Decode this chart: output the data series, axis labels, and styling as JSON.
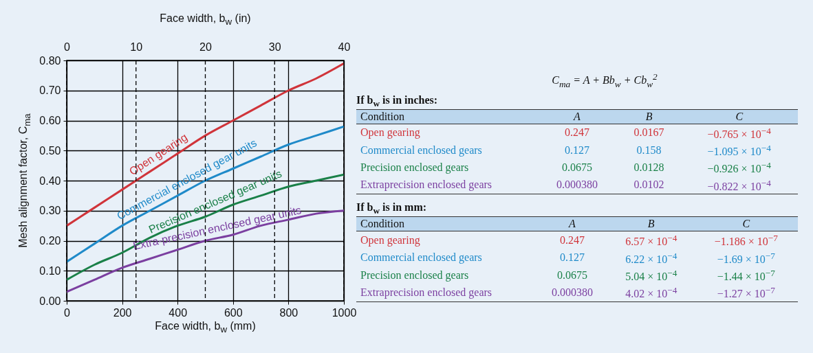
{
  "chart_data": [
    {
      "type": "line",
      "xlabel": "Face width, b$_{w}$ (mm)",
      "x2label": "Face width, b$_{w}$ (in)",
      "ylabel": "Mesh alignment factor, C$_{ma}$",
      "x": [
        0,
        100,
        200,
        300,
        400,
        500,
        600,
        700,
        800,
        900,
        1000
      ],
      "series": [
        {
          "name": "Open gearing",
          "color": "#d0343a",
          "values": [
            0.25,
            0.31,
            0.37,
            0.43,
            0.49,
            0.55,
            0.6,
            0.65,
            0.7,
            0.74,
            0.79
          ]
        },
        {
          "name": "Commercial enclosed gear units",
          "color": "#1f8ac9",
          "values": [
            0.13,
            0.19,
            0.25,
            0.3,
            0.35,
            0.4,
            0.44,
            0.48,
            0.52,
            0.55,
            0.58
          ]
        },
        {
          "name": "Precision enclosed gear units",
          "color": "#1a8048",
          "values": [
            0.07,
            0.12,
            0.16,
            0.21,
            0.25,
            0.28,
            0.32,
            0.35,
            0.38,
            0.4,
            0.42
          ]
        },
        {
          "name": "Extra-precision enclosed gear units",
          "color": "#7b3fa0",
          "values": [
            0.03,
            0.07,
            0.11,
            0.14,
            0.17,
            0.2,
            0.22,
            0.25,
            0.27,
            0.29,
            0.3
          ]
        }
      ],
      "xlim": [
        0,
        1000
      ],
      "xticks": [
        0,
        200,
        400,
        600,
        800,
        1000
      ],
      "x2lim": [
        0,
        40
      ],
      "x2ticks": [
        0,
        10,
        20,
        30,
        40
      ],
      "ylim": [
        0,
        0.8
      ],
      "yticks": [
        {
          "value": 0,
          "label": "0.00"
        },
        {
          "value": 0.1,
          "label": "0.10"
        },
        {
          "value": 0.2,
          "label": "0.20"
        },
        {
          "value": 0.3,
          "label": "0.30"
        },
        {
          "value": 0.4,
          "label": "0.40"
        },
        {
          "value": 0.5,
          "label": "0.50"
        },
        {
          "value": 0.6,
          "label": "0.60"
        },
        {
          "value": 0.7,
          "label": "0.70"
        },
        {
          "value": 0.8,
          "label": "0.80"
        }
      ],
      "grid": true,
      "legend": false
    },
    {
      "type": "other",
      "title": "C$_{ma}$ = A + Bb$_{w}$ + Cb$_{w}$$^{2}$",
      "annotations": [
        "If b$_{w}$ is in inches:",
        "Condition",
        "A",
        "B",
        "C",
        "Open gearing",
        "0.247",
        "0.0167",
        "−0.765 × 10$^{−4}$",
        "Commercial enclosed gears",
        "0.127",
        "0.158",
        "−1.095 × 10$^{−4}$",
        "Precision enclosed gears",
        "0.0675",
        "0.0128",
        "−0.926 × 10$^{−4}$",
        "Extraprecision enclosed gears",
        "0.000380",
        "0.0102",
        "−0.822 × 10$^{−4}$",
        "If b$_{w}$ is in mm:",
        "Condition",
        "A",
        "B",
        "C",
        "Open gearing",
        "0.247",
        "6.57 × 10$^{−4}$",
        "−1.186 × 10$^{−7}$",
        "Commercial enclosed gears",
        "0.127",
        "6.22 × 10$^{−4}$",
        "−1.69 × 10$^{−7}$",
        "Precision enclosed gears",
        "0.0675",
        "5.04 × 10$^{−4}$",
        "−1.44 × 10$^{−7}$",
        "Extraprecision enclosed gears",
        "0.000380",
        "4.02 × 10$^{−4}$",
        "−1.27 × 10$^{−7}$"
      ]
    }
  ]
}
